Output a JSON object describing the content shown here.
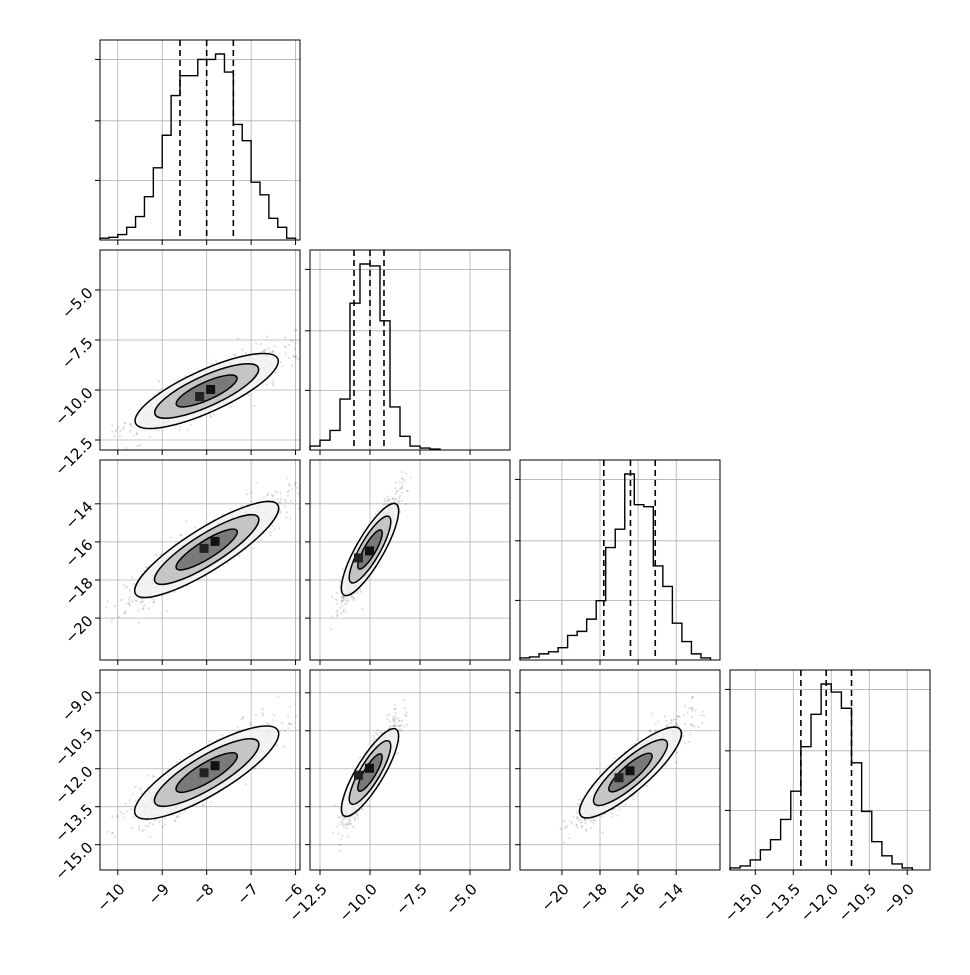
{
  "chart_data": {
    "type": "corner",
    "grid": true,
    "parameters": [
      {
        "range": [
          -10.4,
          -5.9
        ],
        "ticks": [
          -10,
          -9,
          -8,
          -7,
          -6
        ],
        "tick_labels": [
          "−10",
          "−9",
          "−8",
          "−7",
          "−6"
        ],
        "quantiles": [
          -8.6,
          -8.0,
          -7.4
        ],
        "hist": [
          [
            -10.4,
            -10.2,
            0.01
          ],
          [
            -10.2,
            -10.0,
            0.015
          ],
          [
            -10.0,
            -9.8,
            0.03
          ],
          [
            -9.8,
            -9.6,
            0.07
          ],
          [
            -9.6,
            -9.4,
            0.13
          ],
          [
            -9.4,
            -9.2,
            0.24
          ],
          [
            -9.2,
            -9.0,
            0.4
          ],
          [
            -9.0,
            -8.8,
            0.58
          ],
          [
            -8.8,
            -8.6,
            0.8
          ],
          [
            -8.6,
            -8.4,
            0.91
          ],
          [
            -8.4,
            -8.2,
            0.91
          ],
          [
            -8.2,
            -8.0,
            1.0
          ],
          [
            -8.0,
            -7.8,
            1.0
          ],
          [
            -7.8,
            -7.6,
            1.03
          ],
          [
            -7.6,
            -7.4,
            0.93
          ],
          [
            -7.4,
            -7.2,
            0.64
          ],
          [
            -7.2,
            -7.0,
            0.55
          ],
          [
            -7.0,
            -6.8,
            0.32
          ],
          [
            -6.8,
            -6.6,
            0.25
          ],
          [
            -6.6,
            -6.4,
            0.12
          ],
          [
            -6.4,
            -6.2,
            0.07
          ],
          [
            -6.2,
            -6.0,
            0.01
          ]
        ]
      },
      {
        "range": [
          -13.0,
          -3.0
        ],
        "ticks": [
          -12.5,
          -10.0,
          -7.5,
          -5.0
        ],
        "tick_labels": [
          "−12.5",
          "−10.0",
          "−7.5",
          "−5.0"
        ],
        "quantiles": [
          -10.8,
          -10.0,
          -9.3
        ],
        "hist": [
          [
            -13.0,
            -12.5,
            0.02
          ],
          [
            -12.5,
            -12.0,
            0.05
          ],
          [
            -12.0,
            -11.5,
            0.1
          ],
          [
            -11.5,
            -11.0,
            0.26
          ],
          [
            -11.0,
            -10.5,
            0.75
          ],
          [
            -10.5,
            -10.0,
            0.95
          ],
          [
            -10.0,
            -9.5,
            0.94
          ],
          [
            -9.5,
            -9.0,
            0.66
          ],
          [
            -9.0,
            -8.5,
            0.22
          ],
          [
            -8.5,
            -8.0,
            0.07
          ],
          [
            -8.0,
            -7.5,
            0.02
          ],
          [
            -7.5,
            -7.0,
            0.01
          ],
          [
            -7.0,
            -6.5,
            0.005
          ]
        ]
      },
      {
        "range": [
          -22.2,
          -11.7
        ],
        "ticks": [
          -20,
          -18,
          -16,
          -14
        ],
        "tick_labels": [
          "−20",
          "−18",
          "−16",
          "−14"
        ],
        "quantiles": [
          -17.8,
          -16.4,
          -15.1
        ],
        "hist": [
          [
            -22.2,
            -21.7,
            0.01
          ],
          [
            -21.7,
            -21.2,
            0.015
          ],
          [
            -21.2,
            -20.7,
            0.03
          ],
          [
            -20.7,
            -20.2,
            0.04
          ],
          [
            -20.2,
            -19.7,
            0.06
          ],
          [
            -19.7,
            -19.2,
            0.12
          ],
          [
            -19.2,
            -18.7,
            0.14
          ],
          [
            -18.7,
            -18.2,
            0.2
          ],
          [
            -18.2,
            -17.7,
            0.29
          ],
          [
            -17.7,
            -17.2,
            0.55
          ],
          [
            -17.2,
            -16.7,
            0.64
          ],
          [
            -16.7,
            -16.2,
            0.91
          ],
          [
            -16.2,
            -15.7,
            0.76
          ],
          [
            -15.7,
            -15.2,
            0.75
          ],
          [
            -15.2,
            -14.7,
            0.46
          ],
          [
            -14.7,
            -14.2,
            0.36
          ],
          [
            -14.2,
            -13.7,
            0.18
          ],
          [
            -13.7,
            -13.2,
            0.09
          ],
          [
            -13.2,
            -12.7,
            0.03
          ],
          [
            -12.7,
            -12.2,
            0.01
          ]
        ]
      },
      {
        "range": [
          -16.0,
          -8.1
        ],
        "ticks": [
          -15.0,
          -13.5,
          -12.0,
          -10.5,
          -9.0
        ],
        "tick_labels": [
          "−15.0",
          "−13.5",
          "−12.0",
          "−10.5",
          "−9.0"
        ],
        "quantiles": [
          -13.2,
          -12.2,
          -11.2
        ],
        "hist": [
          [
            -16.0,
            -15.6,
            0.01
          ],
          [
            -15.6,
            -15.2,
            0.02
          ],
          [
            -15.2,
            -14.8,
            0.05
          ],
          [
            -14.8,
            -14.4,
            0.1
          ],
          [
            -14.4,
            -14.0,
            0.15
          ],
          [
            -14.0,
            -13.6,
            0.25
          ],
          [
            -13.6,
            -13.2,
            0.39
          ],
          [
            -13.2,
            -12.8,
            0.61
          ],
          [
            -12.8,
            -12.4,
            0.77
          ],
          [
            -12.4,
            -12.0,
            0.92
          ],
          [
            -12.0,
            -11.6,
            0.88
          ],
          [
            -11.6,
            -11.2,
            0.8
          ],
          [
            -11.2,
            -10.8,
            0.53
          ],
          [
            -10.8,
            -10.4,
            0.29
          ],
          [
            -10.4,
            -10.0,
            0.14
          ],
          [
            -10.0,
            -9.6,
            0.07
          ],
          [
            -9.6,
            -9.2,
            0.03
          ],
          [
            -9.2,
            -8.8,
            0.01
          ]
        ]
      }
    ],
    "pairs": [
      {
        "row": 1,
        "col": 0,
        "center": [
          -8.0,
          -10.05
        ],
        "sx": 0.8,
        "sy": 0.95,
        "rho": 0.85,
        "peak": [
          -7.9,
          -10.0
        ]
      },
      {
        "row": 2,
        "col": 0,
        "center": [
          -8.0,
          -16.4
        ],
        "sx": 0.8,
        "sy": 1.3,
        "rho": 0.9,
        "peak": [
          -7.8,
          -16.0
        ]
      },
      {
        "row": 2,
        "col": 1,
        "center": [
          -10.0,
          -16.4
        ],
        "sx": 0.65,
        "sy": 1.3,
        "rho": 0.92,
        "peak": [
          -10.0,
          -16.5
        ]
      },
      {
        "row": 3,
        "col": 0,
        "center": [
          -8.0,
          -12.15
        ],
        "sx": 0.8,
        "sy": 0.95,
        "rho": 0.88,
        "peak": [
          -7.8,
          -11.9
        ]
      },
      {
        "row": 3,
        "col": 1,
        "center": [
          -10.0,
          -12.15
        ],
        "sx": 0.65,
        "sy": 0.95,
        "rho": 0.9,
        "peak": [
          -10.0,
          -12.0
        ]
      },
      {
        "row": 3,
        "col": 2,
        "center": [
          -16.4,
          -12.15
        ],
        "sx": 1.3,
        "sy": 0.95,
        "rho": 0.9,
        "peak": [
          -16.4,
          -12.1
        ]
      }
    ]
  }
}
